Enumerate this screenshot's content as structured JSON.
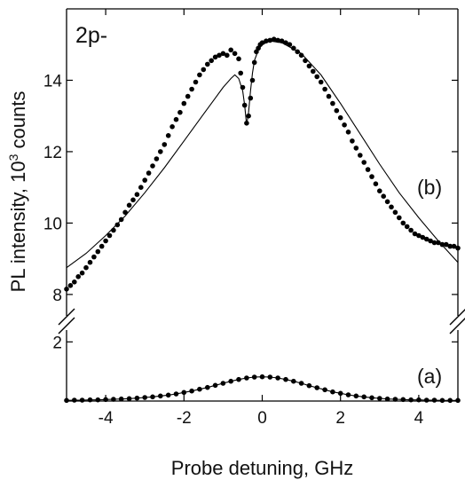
{
  "chart_data": {
    "type": "scatter",
    "panel_title": "2p-",
    "xlabel": "Probe detuning, GHz",
    "ylabel": "PL intensity, 10^3 counts",
    "ylabel_parts": {
      "main": "PL intensity, 10",
      "sup": "3",
      "end": " counts"
    },
    "xlim": [
      -5,
      5
    ],
    "x_ticks": [
      -4,
      -2,
      0,
      2,
      4
    ],
    "x_tick_labels": [
      "-4",
      "-2",
      "0",
      "2",
      "4"
    ],
    "axis_break": true,
    "upper_panel": {
      "label": "(b)",
      "ylim": [
        7.5,
        16.0
      ],
      "y_ticks": [
        8,
        10,
        12,
        14
      ],
      "y_tick_labels": [
        "8",
        "10",
        "12",
        "14"
      ]
    },
    "lower_panel": {
      "label": "(a)",
      "ylim": [
        0,
        3.0
      ],
      "y_ticks": [
        2
      ],
      "y_tick_labels": [
        "2"
      ]
    },
    "series": [
      {
        "name": "(b) data",
        "panel": "upper",
        "style": "dots",
        "x": [
          -5.0,
          -4.9,
          -4.8,
          -4.7,
          -4.6,
          -4.5,
          -4.4,
          -4.3,
          -4.2,
          -4.1,
          -4.0,
          -3.9,
          -3.8,
          -3.7,
          -3.6,
          -3.5,
          -3.4,
          -3.3,
          -3.2,
          -3.1,
          -3.0,
          -2.9,
          -2.8,
          -2.7,
          -2.6,
          -2.5,
          -2.4,
          -2.3,
          -2.2,
          -2.1,
          -2.0,
          -1.9,
          -1.8,
          -1.7,
          -1.6,
          -1.5,
          -1.4,
          -1.3,
          -1.2,
          -1.1,
          -1.0,
          -0.9,
          -0.8,
          -0.7,
          -0.6,
          -0.55,
          -0.5,
          -0.45,
          -0.4,
          -0.35,
          -0.3,
          -0.25,
          -0.2,
          -0.15,
          -0.1,
          -0.05,
          0.0,
          0.1,
          0.2,
          0.3,
          0.4,
          0.5,
          0.6,
          0.7,
          0.8,
          0.9,
          1.0,
          1.1,
          1.2,
          1.3,
          1.4,
          1.5,
          1.6,
          1.7,
          1.8,
          1.9,
          2.0,
          2.1,
          2.2,
          2.3,
          2.4,
          2.5,
          2.6,
          2.7,
          2.8,
          2.9,
          3.0,
          3.1,
          3.2,
          3.3,
          3.4,
          3.5,
          3.6,
          3.7,
          3.8,
          3.9,
          4.0,
          4.1,
          4.2,
          4.3,
          4.4,
          4.5,
          4.6,
          4.7,
          4.8,
          4.9,
          5.0
        ],
        "y": [
          8.15,
          8.25,
          8.35,
          8.5,
          8.6,
          8.75,
          8.9,
          9.05,
          9.2,
          9.35,
          9.5,
          9.65,
          9.8,
          9.95,
          10.1,
          10.3,
          10.5,
          10.65,
          10.8,
          11.0,
          11.2,
          11.4,
          11.6,
          11.8,
          12.0,
          12.2,
          12.45,
          12.7,
          12.9,
          13.1,
          13.35,
          13.55,
          13.75,
          13.95,
          14.15,
          14.3,
          14.45,
          14.55,
          14.65,
          14.7,
          14.75,
          14.7,
          14.85,
          14.75,
          14.6,
          14.2,
          13.8,
          13.3,
          12.8,
          13.0,
          13.5,
          14.0,
          14.5,
          14.8,
          14.9,
          15.0,
          15.05,
          15.1,
          15.12,
          15.15,
          15.12,
          15.1,
          15.05,
          15.0,
          14.9,
          14.8,
          14.7,
          14.55,
          14.4,
          14.25,
          14.1,
          13.95,
          13.75,
          13.55,
          13.35,
          13.15,
          12.95,
          12.75,
          12.55,
          12.3,
          12.1,
          11.9,
          11.7,
          11.5,
          11.3,
          11.1,
          10.9,
          10.75,
          10.6,
          10.45,
          10.3,
          10.15,
          10.0,
          9.9,
          9.8,
          9.7,
          9.65,
          9.6,
          9.55,
          9.5,
          9.45,
          9.45,
          9.4,
          9.4,
          9.35,
          9.35,
          9.3
        ]
      },
      {
        "name": "(b) fit",
        "panel": "upper",
        "style": "line",
        "x": [
          -5.0,
          -4.5,
          -4.0,
          -3.5,
          -3.0,
          -2.5,
          -2.0,
          -1.5,
          -1.2,
          -1.0,
          -0.8,
          -0.7,
          -0.6,
          -0.5,
          -0.45,
          -0.4,
          -0.35,
          -0.3,
          -0.25,
          -0.2,
          -0.1,
          0.0,
          0.2,
          0.5,
          1.0,
          1.5,
          2.0,
          2.5,
          3.0,
          3.5,
          4.0,
          4.5,
          5.0
        ],
        "y": [
          8.75,
          9.15,
          9.65,
          10.2,
          10.85,
          11.55,
          12.3,
          13.05,
          13.5,
          13.8,
          14.05,
          14.15,
          14.05,
          13.7,
          13.3,
          12.75,
          13.1,
          13.7,
          14.2,
          14.55,
          14.85,
          15.0,
          15.1,
          15.05,
          14.75,
          14.15,
          13.35,
          12.5,
          11.65,
          10.85,
          10.15,
          9.5,
          8.9
        ]
      },
      {
        "name": "(a) data",
        "panel": "lower",
        "style": "dots-line",
        "x": [
          -5.0,
          -4.8,
          -4.6,
          -4.4,
          -4.2,
          -4.0,
          -3.8,
          -3.6,
          -3.4,
          -3.2,
          -3.0,
          -2.8,
          -2.6,
          -2.4,
          -2.2,
          -2.0,
          -1.8,
          -1.6,
          -1.4,
          -1.2,
          -1.0,
          -0.8,
          -0.6,
          -0.4,
          -0.2,
          0.0,
          0.2,
          0.4,
          0.6,
          0.8,
          1.0,
          1.2,
          1.4,
          1.6,
          1.8,
          2.0,
          2.2,
          2.4,
          2.6,
          2.8,
          3.0,
          3.2,
          3.4,
          3.6,
          3.8,
          4.0,
          4.2,
          4.4,
          4.6,
          4.8,
          5.0
        ],
        "y": [
          0.02,
          0.03,
          0.03,
          0.04,
          0.04,
          0.05,
          0.06,
          0.07,
          0.08,
          0.1,
          0.12,
          0.14,
          0.17,
          0.2,
          0.24,
          0.29,
          0.34,
          0.4,
          0.46,
          0.53,
          0.6,
          0.67,
          0.73,
          0.78,
          0.81,
          0.82,
          0.81,
          0.78,
          0.73,
          0.67,
          0.6,
          0.52,
          0.45,
          0.38,
          0.31,
          0.26,
          0.21,
          0.17,
          0.14,
          0.11,
          0.09,
          0.07,
          0.06,
          0.05,
          0.04,
          0.04,
          0.03,
          0.03,
          0.02,
          0.02,
          0.02
        ]
      }
    ]
  }
}
